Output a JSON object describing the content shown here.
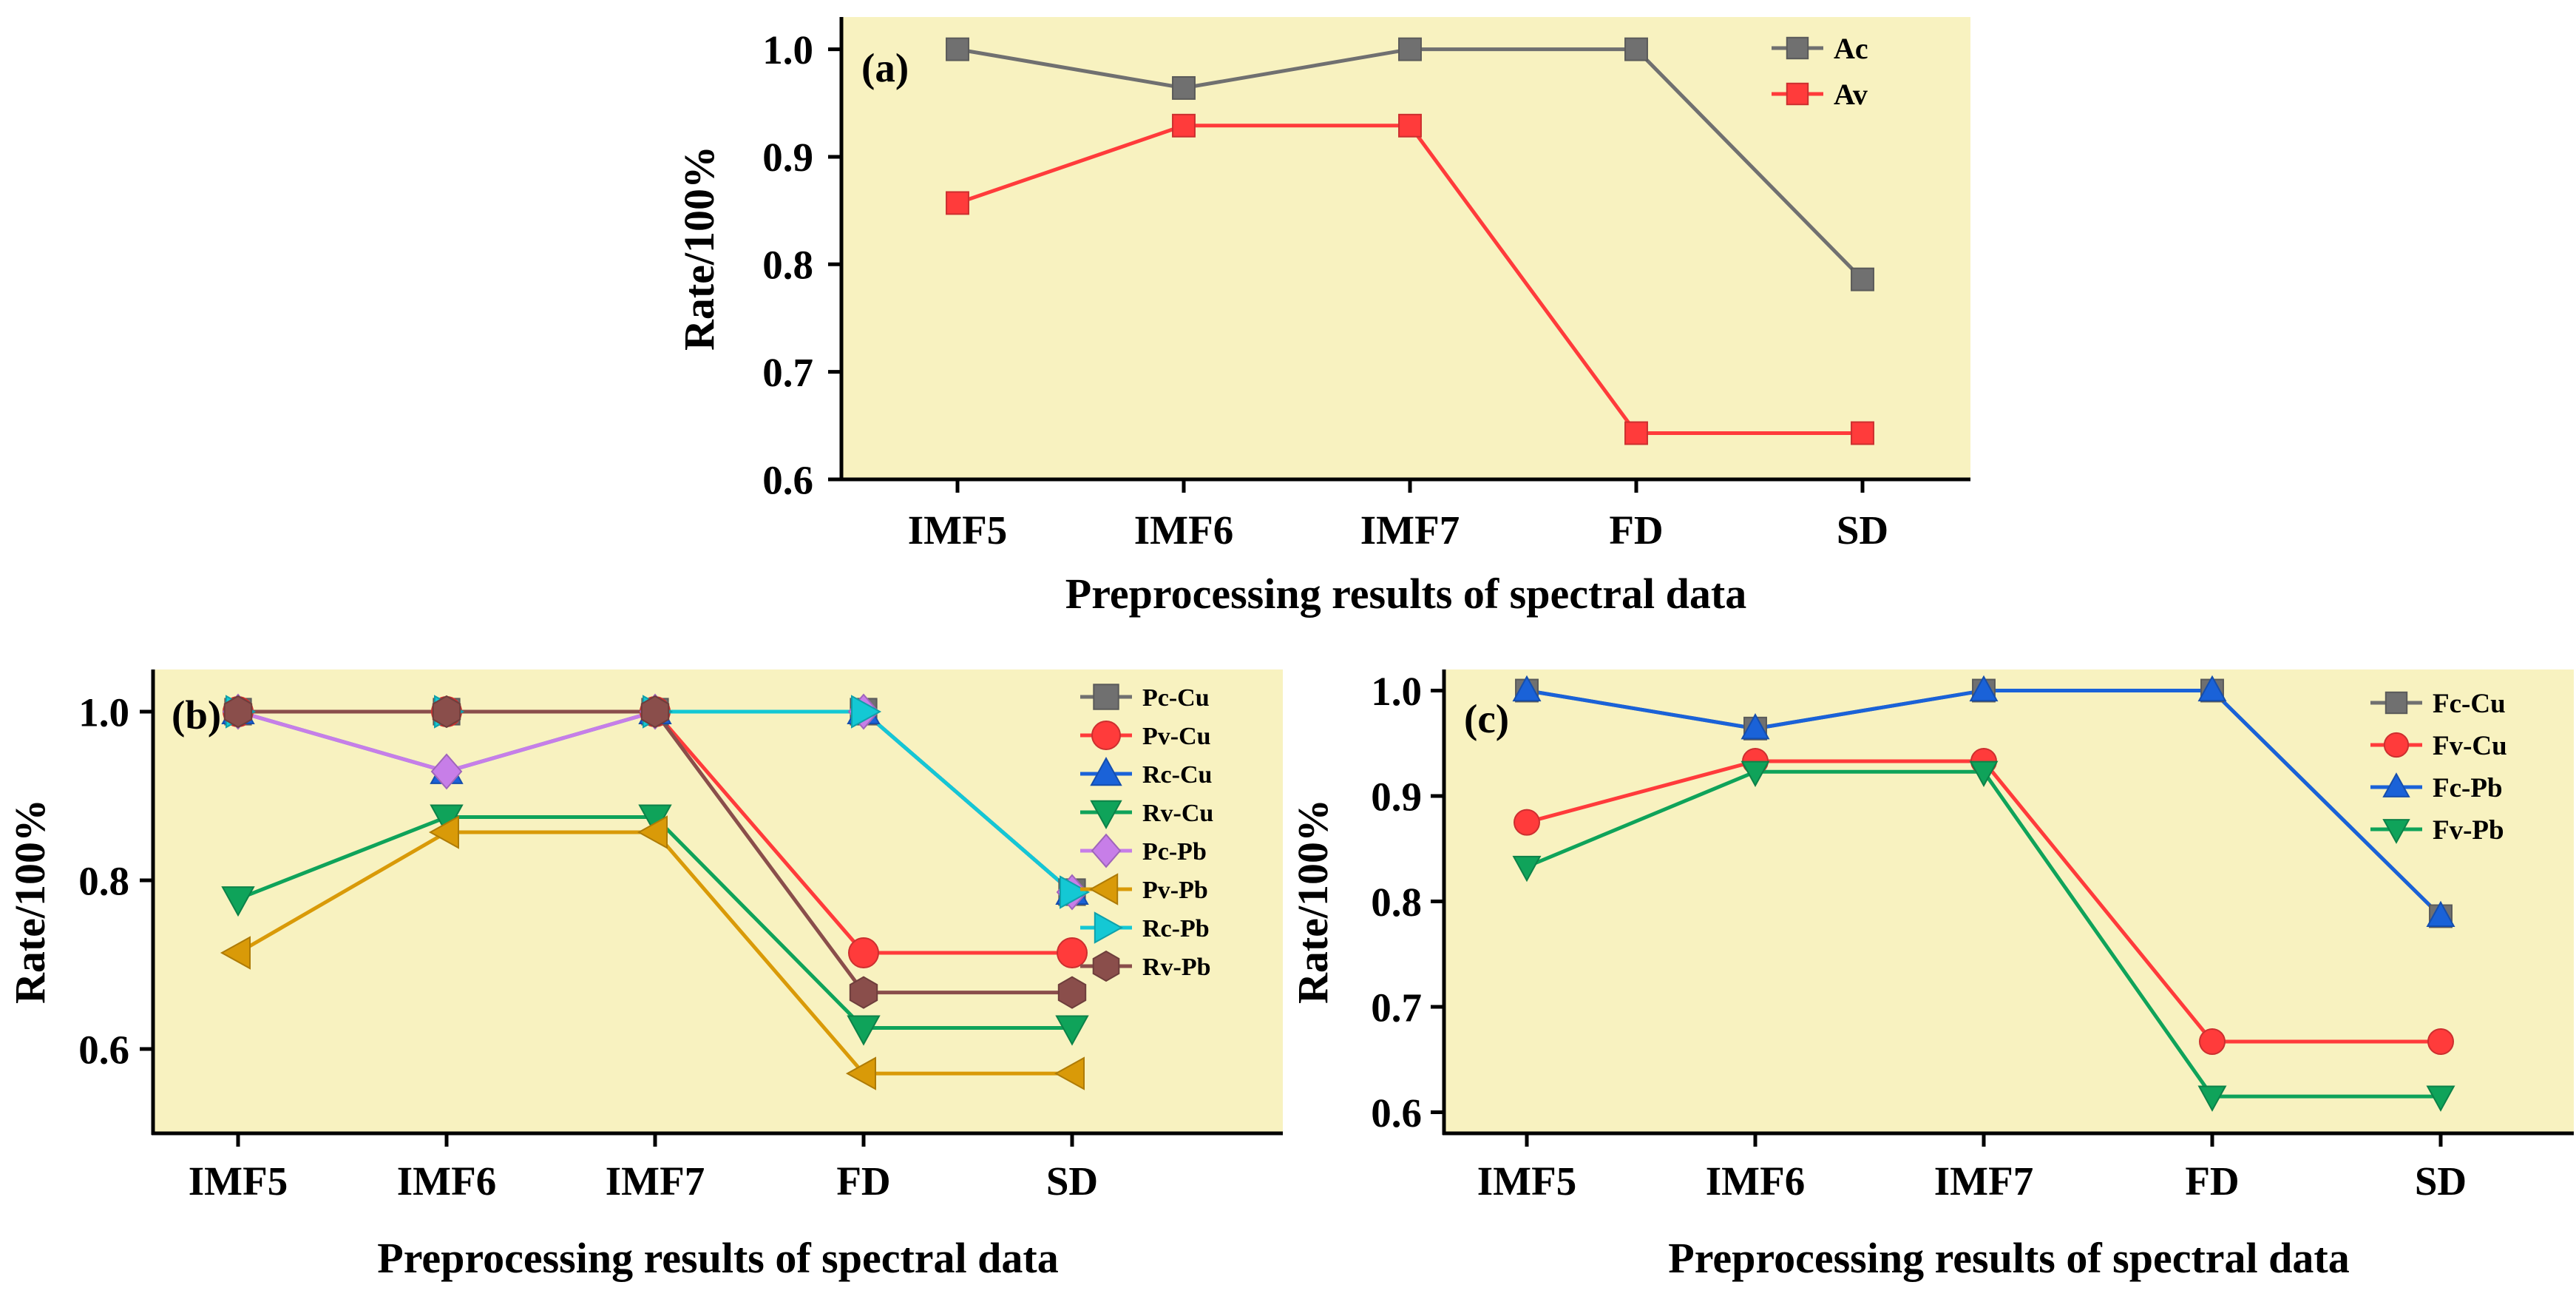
{
  "chart_data": [
    {
      "id": "a",
      "type": "line",
      "panel_label": "(a)",
      "categories": [
        "IMF5",
        "IMF6",
        "IMF7",
        "FD",
        "SD"
      ],
      "xlabel": "Preprocessing results of spectral data",
      "ylabel": "Rate/100%",
      "ylim": [
        0.6,
        1.03
      ],
      "yticks": [
        0.6,
        0.7,
        0.8,
        0.9,
        1.0
      ],
      "legend_position": "top-right",
      "series": [
        {
          "name": "Ac",
          "color": "#707070",
          "marker": "square",
          "values": [
            1.0,
            0.964,
            1.0,
            1.0,
            0.786
          ]
        },
        {
          "name": "Av",
          "color": "#ff3b3b",
          "marker": "square",
          "values": [
            0.857,
            0.929,
            0.929,
            0.643,
            0.643
          ]
        }
      ]
    },
    {
      "id": "b",
      "type": "line",
      "panel_label": "(b)",
      "categories": [
        "IMF5",
        "IMF6",
        "IMF7",
        "FD",
        "SD"
      ],
      "xlabel": "Preprocessing results of spectral data",
      "ylabel": "Rate/100%",
      "ylim": [
        0.5,
        1.05
      ],
      "yticks": [
        0.6,
        0.8,
        1.0
      ],
      "legend_position": "top-right",
      "series": [
        {
          "name": "Pc-Cu",
          "color": "#707070",
          "marker": "square",
          "values": [
            1.0,
            1.0,
            1.0,
            1.0,
            0.786
          ]
        },
        {
          "name": "Pv-Cu",
          "color": "#ff3b3b",
          "marker": "circle",
          "values": [
            1.0,
            1.0,
            1.0,
            0.714,
            0.714
          ]
        },
        {
          "name": "Rc-Cu",
          "color": "#1a62d8",
          "marker": "triangle-up",
          "values": [
            1.0,
            0.929,
            1.0,
            1.0,
            0.786
          ]
        },
        {
          "name": "Rv-Cu",
          "color": "#0fa35a",
          "marker": "triangle-down",
          "values": [
            0.778,
            0.875,
            0.875,
            0.625,
            0.625
          ]
        },
        {
          "name": "Pc-Pb",
          "color": "#c77ee8",
          "marker": "diamond",
          "values": [
            1.0,
            0.929,
            1.0,
            1.0,
            0.786
          ]
        },
        {
          "name": "Pv-Pb",
          "color": "#d99a08",
          "marker": "triangle-left",
          "values": [
            0.714,
            0.857,
            0.857,
            0.571,
            0.571
          ]
        },
        {
          "name": "Rc-Pb",
          "color": "#14c8d4",
          "marker": "triangle-right",
          "values": [
            1.0,
            1.0,
            1.0,
            1.0,
            0.786
          ]
        },
        {
          "name": "Rv-Pb",
          "color": "#8a4e4b",
          "marker": "hexagon",
          "values": [
            1.0,
            1.0,
            1.0,
            0.667,
            0.667
          ]
        }
      ]
    },
    {
      "id": "c",
      "type": "line",
      "panel_label": "(c)",
      "categories": [
        "IMF5",
        "IMF6",
        "IMF7",
        "FD",
        "SD"
      ],
      "xlabel": "Preprocessing results of spectral data",
      "ylabel": "Rate/100%",
      "ylim": [
        0.58,
        1.02
      ],
      "yticks": [
        0.6,
        0.7,
        0.8,
        0.9,
        1.0
      ],
      "legend_position": "top-right",
      "series": [
        {
          "name": "Fc-Cu",
          "color": "#707070",
          "marker": "square",
          "values": [
            1.0,
            0.964,
            1.0,
            1.0,
            0.786
          ]
        },
        {
          "name": "Fv-Cu",
          "color": "#ff3b3b",
          "marker": "circle",
          "values": [
            0.875,
            0.933,
            0.933,
            0.667,
            0.667
          ]
        },
        {
          "name": "Fc-Pb",
          "color": "#1a62d8",
          "marker": "triangle-up",
          "values": [
            1.0,
            0.964,
            1.0,
            1.0,
            0.786
          ]
        },
        {
          "name": "Fv-Pb",
          "color": "#0fa35a",
          "marker": "triangle-down",
          "values": [
            0.833,
            0.923,
            0.923,
            0.615,
            0.615
          ]
        }
      ]
    }
  ]
}
